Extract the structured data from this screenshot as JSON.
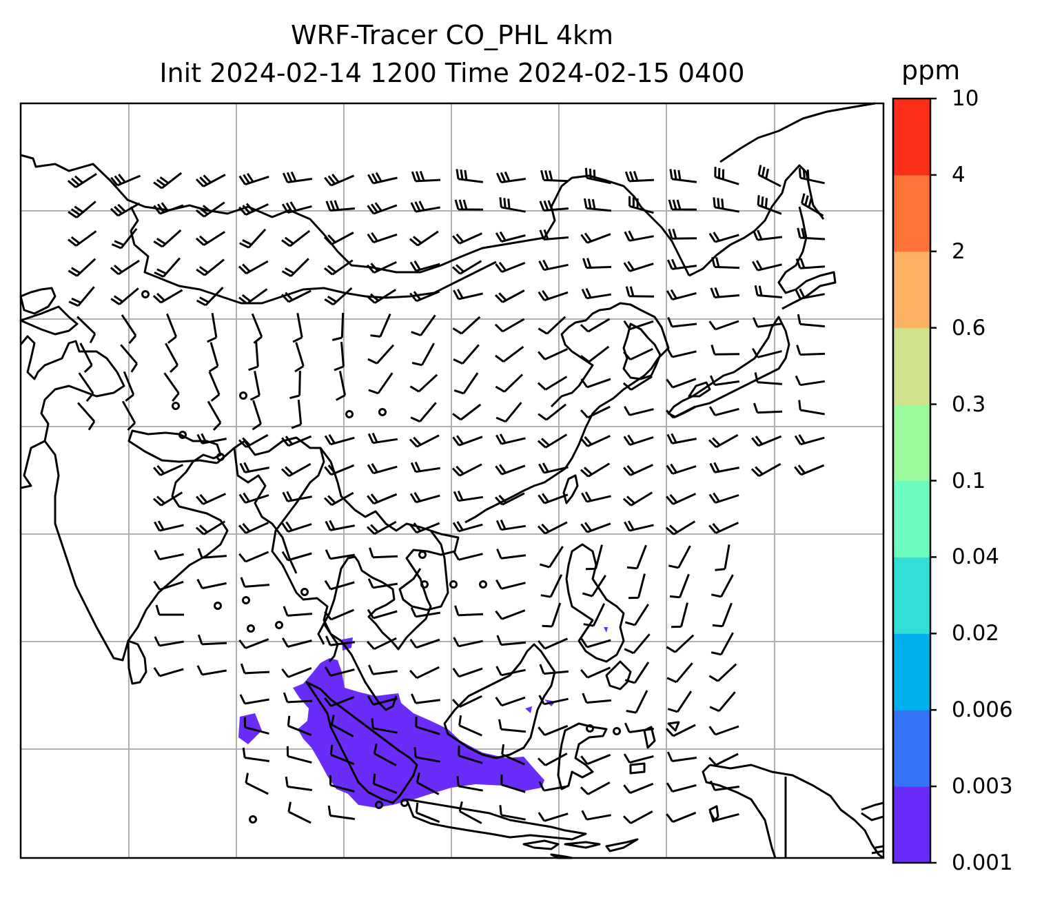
{
  "title": {
    "line1": "WRF-Tracer CO_PHL 4km",
    "line2": "Init 2024-02-14 1200 Time 2024-02-15 0400"
  },
  "colorbar": {
    "unit": "ppm",
    "bounds": [
      "0.001",
      "0.003",
      "0.006",
      "0.02",
      "0.04",
      "0.1",
      "0.3",
      "0.6",
      "2",
      "4",
      "10"
    ],
    "colors": [
      "#6a2cf9",
      "#3375f4",
      "#00b1ee",
      "#31dfd6",
      "#6dfcbf",
      "#9bfa9c",
      "#d0e38a",
      "#fdb164",
      "#fe7338",
      "#fc2e17"
    ]
  },
  "map": {
    "projection": "Asia domain, coastlines with lat/lon gridlines",
    "gridlines": "on",
    "plume_color": "#6a2cf9",
    "plume_region": "over Sumatra / Java Sea / southern Borneo, concentration 0.001-0.003 ppm",
    "wind_barbs": "on",
    "calm_markers": "circles"
  }
}
